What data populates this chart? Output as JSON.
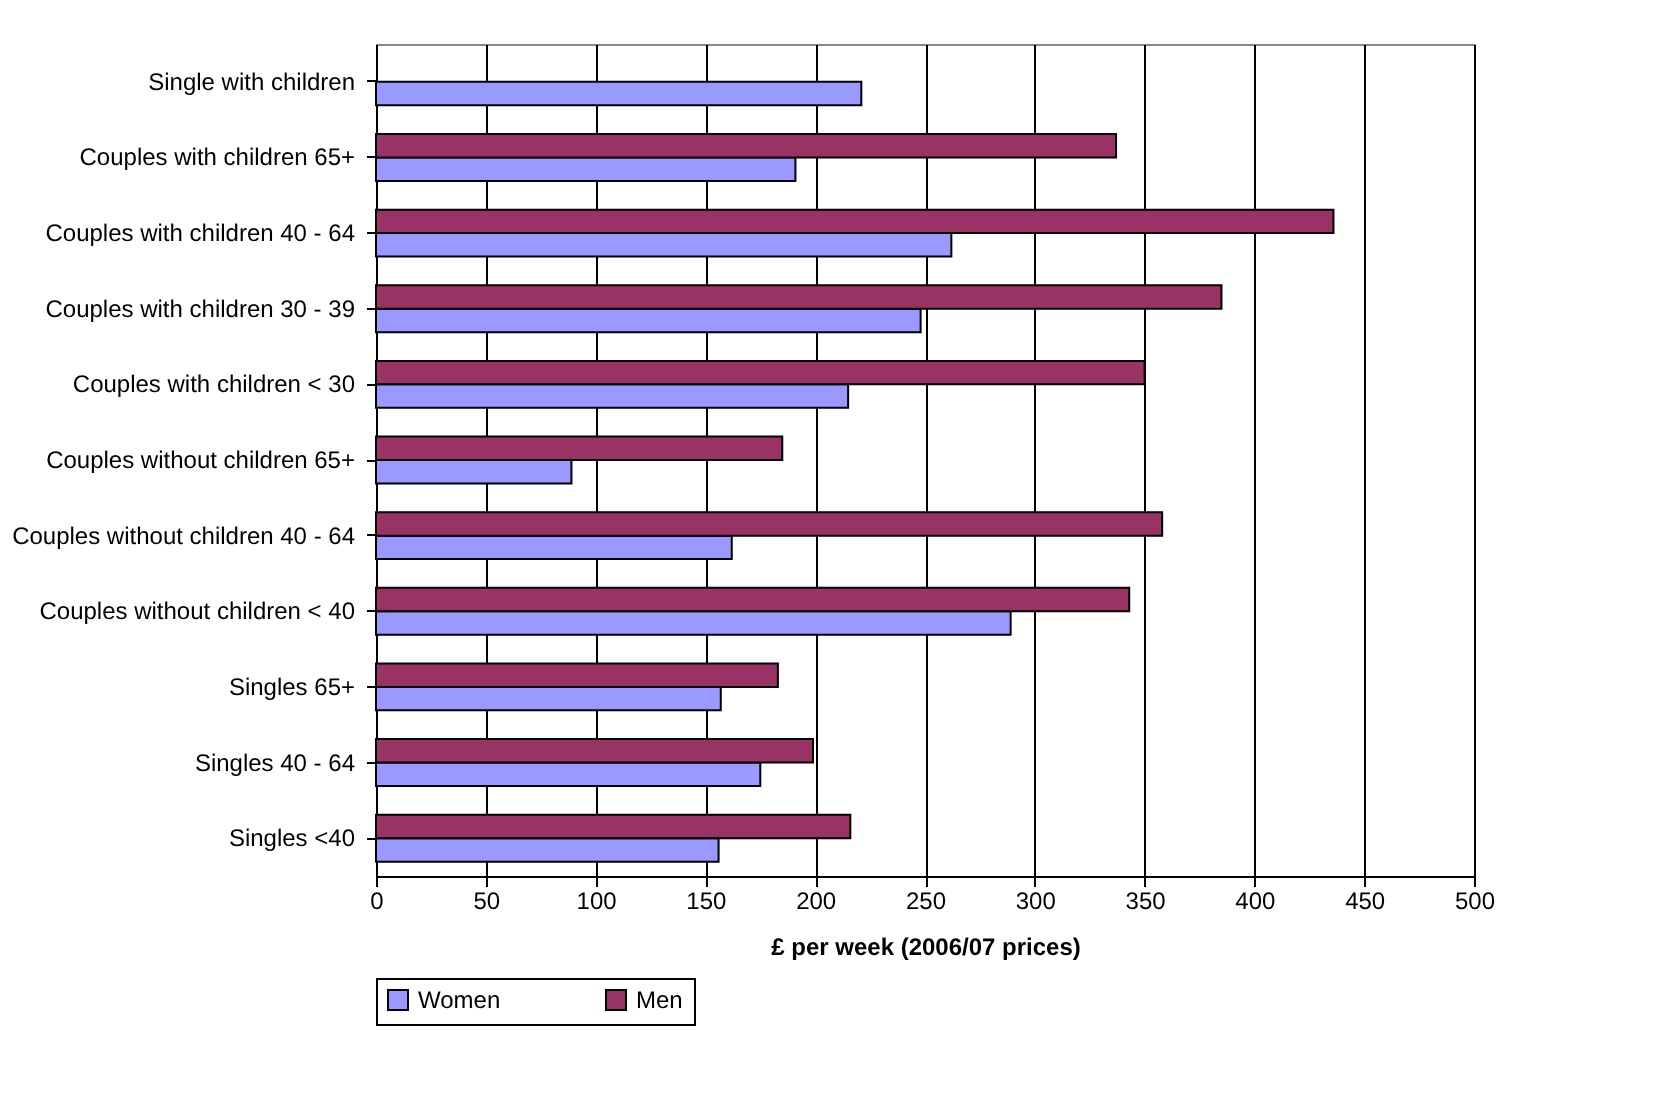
{
  "chart_data": {
    "type": "bar",
    "orientation": "horizontal",
    "xlabel": "£ per week (2006/07 prices)",
    "categories": [
      "Single with children",
      "Couples with children 65+",
      "Couples with children 40 - 64",
      "Couples with children 30 - 39",
      "Couples with children < 30",
      "Couples without children 65+",
      "Couples without children 40 - 64",
      "Couples without children < 40",
      "Singles 65+",
      "Singles 40 - 64",
      "Singles <40"
    ],
    "series": [
      {
        "name": "Women",
        "color": "#9999ff",
        "values": [
          221,
          191,
          262,
          248,
          215,
          89,
          162,
          289,
          157,
          175,
          156
        ]
      },
      {
        "name": "Men",
        "color": "#993366",
        "values": [
          null,
          337,
          436,
          385,
          350,
          185,
          358,
          343,
          183,
          199,
          216
        ]
      }
    ],
    "xlim": [
      0,
      500
    ],
    "xticks": [
      0,
      50,
      100,
      150,
      200,
      250,
      300,
      350,
      400,
      450,
      500
    ],
    "grid": "x",
    "legend": "bottom"
  }
}
